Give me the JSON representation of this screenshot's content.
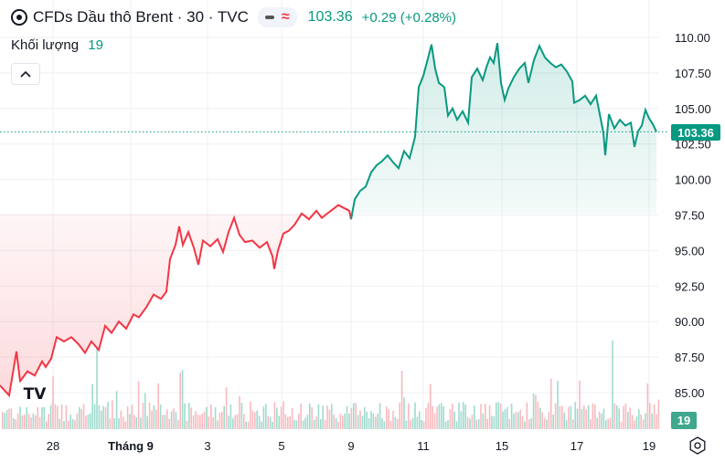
{
  "header": {
    "symbol_title": "CFDs Dầu thô Brent · 30 · TVC",
    "last_price": "103.36",
    "change": "+0.29 (+0.28%)",
    "volume_label": "Khối lượng",
    "volume_value": "19"
  },
  "price_tag": "103.36",
  "volume_tag": "19",
  "logo_text": "TV",
  "colors": {
    "up": "#089981",
    "down": "#f23645",
    "grid": "#eef0f3",
    "up_fill": "#e6f4f0",
    "down_fill": "#fde6e8"
  },
  "icons": [
    "symbol-icon",
    "chevron-up-icon",
    "tradingview-logo-icon",
    "settings-gear-icon"
  ],
  "chart_data": {
    "type": "area",
    "y_axis_ticks": [
      "110.00",
      "107.50",
      "105.00",
      "102.50",
      "100.00",
      "97.50",
      "95.00",
      "92.50",
      "90.00",
      "87.50",
      "85.00"
    ],
    "ylim": [
      83.5,
      111.5
    ],
    "x_axis_ticks": [
      "28",
      "Tháng 9",
      "3",
      "5",
      "9",
      "11",
      "15",
      "17",
      "19"
    ],
    "baseline": 97.6,
    "last_value": 103.36,
    "series": [
      {
        "values": [
          [
            0,
            85.5
          ],
          [
            10,
            84.8
          ],
          [
            18,
            87.9
          ],
          [
            22,
            85.8
          ],
          [
            30,
            86.5
          ],
          [
            38,
            86.2
          ],
          [
            46,
            87.2
          ],
          [
            50,
            86.8
          ],
          [
            56,
            87.4
          ],
          [
            62,
            88.9
          ],
          [
            70,
            88.6
          ],
          [
            78,
            88.9
          ],
          [
            86,
            88.4
          ],
          [
            93,
            87.8
          ],
          [
            100,
            88.6
          ],
          [
            108,
            88.0
          ],
          [
            115,
            89.7
          ],
          [
            122,
            89.2
          ],
          [
            130,
            90.0
          ],
          [
            138,
            89.5
          ],
          [
            146,
            90.5
          ],
          [
            152,
            90.3
          ],
          [
            160,
            91.0
          ],
          [
            168,
            91.9
          ],
          [
            176,
            91.6
          ],
          [
            182,
            92.1
          ],
          [
            186,
            94.4
          ],
          [
            192,
            95.4
          ],
          [
            196,
            96.7
          ],
          [
            200,
            95.4
          ],
          [
            206,
            96.3
          ],
          [
            212,
            95.2
          ],
          [
            217,
            94.0
          ],
          [
            222,
            95.7
          ],
          [
            230,
            95.3
          ],
          [
            238,
            95.8
          ],
          [
            244,
            94.9
          ],
          [
            250,
            96.3
          ],
          [
            256,
            97.3
          ],
          [
            262,
            96.1
          ],
          [
            268,
            95.6
          ],
          [
            276,
            95.7
          ],
          [
            284,
            95.2
          ],
          [
            292,
            95.6
          ],
          [
            298,
            94.6
          ],
          [
            300,
            93.7
          ],
          [
            304,
            95.0
          ],
          [
            310,
            96.2
          ],
          [
            316,
            96.4
          ],
          [
            322,
            96.8
          ],
          [
            330,
            97.6
          ],
          [
            338,
            97.2
          ],
          [
            346,
            97.8
          ],
          [
            352,
            97.3
          ],
          [
            358,
            97.6
          ],
          [
            364,
            97.9
          ],
          [
            370,
            98.2
          ],
          [
            376,
            98.0
          ],
          [
            382,
            97.8
          ],
          [
            384,
            97.2
          ],
          [
            388,
            98.6
          ],
          [
            394,
            99.2
          ],
          [
            400,
            99.5
          ],
          [
            406,
            100.5
          ],
          [
            412,
            101.0
          ],
          [
            418,
            101.3
          ],
          [
            424,
            101.7
          ],
          [
            430,
            101.2
          ],
          [
            436,
            100.8
          ],
          [
            442,
            102.0
          ],
          [
            448,
            101.5
          ],
          [
            454,
            103.0
          ],
          [
            458,
            106.5
          ],
          [
            463,
            107.3
          ],
          [
            468,
            108.5
          ],
          [
            472,
            109.5
          ],
          [
            476,
            107.8
          ],
          [
            480,
            106.8
          ],
          [
            486,
            106.5
          ],
          [
            490,
            104.5
          ],
          [
            495,
            105.0
          ],
          [
            500,
            104.2
          ],
          [
            506,
            104.8
          ],
          [
            512,
            104.0
          ],
          [
            516,
            107.2
          ],
          [
            522,
            107.8
          ],
          [
            528,
            107.0
          ],
          [
            532,
            107.9
          ],
          [
            536,
            108.6
          ],
          [
            540,
            108.2
          ],
          [
            544,
            109.6
          ],
          [
            548,
            106.8
          ],
          [
            552,
            105.6
          ],
          [
            556,
            106.4
          ],
          [
            562,
            107.2
          ],
          [
            568,
            107.8
          ],
          [
            574,
            108.2
          ],
          [
            578,
            106.8
          ],
          [
            584,
            108.4
          ],
          [
            590,
            109.4
          ],
          [
            596,
            108.6
          ],
          [
            602,
            108.2
          ],
          [
            608,
            107.9
          ],
          [
            614,
            108.1
          ],
          [
            620,
            107.6
          ],
          [
            626,
            106.9
          ],
          [
            628,
            105.4
          ],
          [
            634,
            105.6
          ],
          [
            640,
            105.9
          ],
          [
            646,
            105.3
          ],
          [
            652,
            105.9
          ],
          [
            656,
            104.6
          ],
          [
            660,
            103.3
          ],
          [
            662,
            101.7
          ],
          [
            666,
            104.6
          ],
          [
            672,
            103.6
          ],
          [
            678,
            104.2
          ],
          [
            684,
            103.8
          ],
          [
            690,
            104.0
          ],
          [
            694,
            102.3
          ],
          [
            698,
            103.4
          ],
          [
            702,
            103.8
          ],
          [
            706,
            104.9
          ],
          [
            710,
            104.3
          ],
          [
            714,
            103.9
          ],
          [
            718,
            103.36
          ]
        ]
      }
    ]
  }
}
